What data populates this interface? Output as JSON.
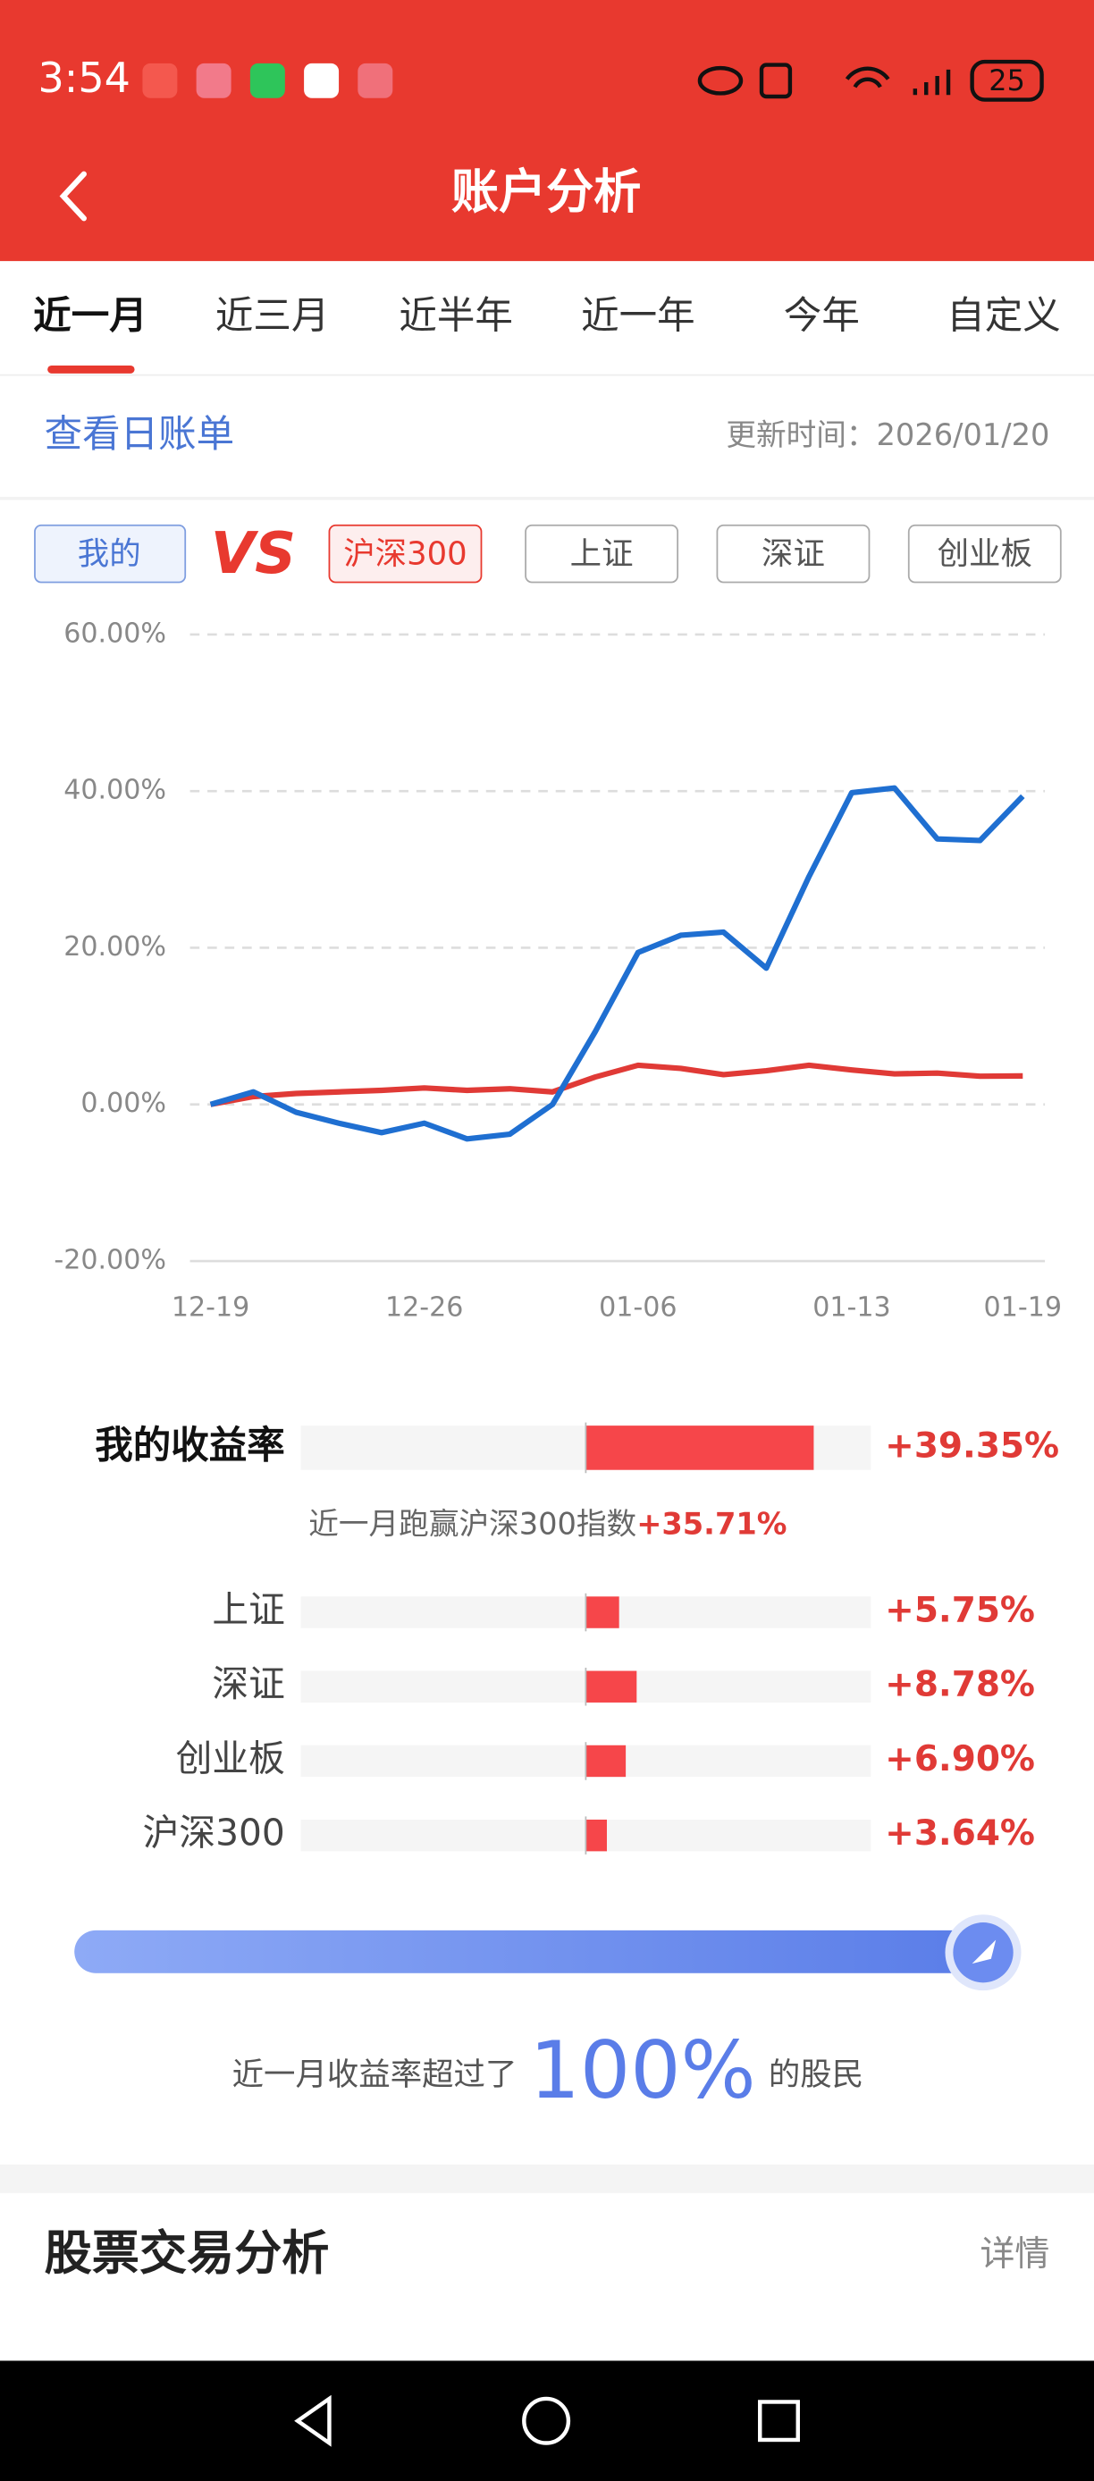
{
  "status_bar": {
    "time": "3:54",
    "battery": "25"
  },
  "header": {
    "title": "账户分析"
  },
  "tabs": [
    "近一月",
    "近三月",
    "近半年",
    "近一年",
    "今年",
    "自定义"
  ],
  "bill_link": "查看日账单",
  "update_time": "更新时间：2026/01/20",
  "compare": {
    "mine": "我的",
    "vs": "VS",
    "buttons": [
      "沪深300",
      "上证",
      "深证",
      "创业板"
    ]
  },
  "chart_data": [
    {
      "type": "line",
      "categories": [
        "12-19",
        null,
        null,
        null,
        null,
        "12-26",
        null,
        null,
        null,
        null,
        "01-06",
        null,
        null,
        null,
        null,
        "01-13",
        null,
        null,
        null,
        "01-19"
      ],
      "series": [
        {
          "name": "我的",
          "color": "#1f6fd1",
          "values": [
            0,
            1.6,
            -1,
            -2.4,
            -3.6,
            -2.4,
            -4.4,
            -3.8,
            0,
            9.3,
            19.4,
            21.6,
            22,
            17.4,
            29.1,
            39.8,
            40.4,
            33.9,
            33.7,
            39.35
          ]
        },
        {
          "name": "沪深300",
          "color": "#e03a36",
          "values": [
            0,
            1.0,
            1.4,
            1.6,
            1.8,
            2.1,
            1.8,
            2.0,
            1.6,
            3.5,
            5.0,
            4.6,
            3.8,
            4.3,
            5.0,
            4.4,
            3.9,
            4.0,
            3.6,
            3.64
          ]
        }
      ],
      "ylim": [
        -20,
        60
      ],
      "yticks": [
        {
          "value": -20,
          "label": "-20.00%"
        },
        {
          "value": 0,
          "label": "0.00%"
        },
        {
          "value": 20,
          "label": "20.00%"
        },
        {
          "value": 40,
          "label": "40.00%"
        },
        {
          "value": 60,
          "label": "60.00%"
        }
      ],
      "grid": true
    },
    {
      "type": "bar",
      "orientation": "horizontal",
      "categories": [
        "我的收益率",
        "上证",
        "深证",
        "创业板",
        "沪深300"
      ],
      "values": [
        39.35,
        5.75,
        8.78,
        6.9,
        3.64
      ],
      "value_labels": [
        "+39.35%",
        "+5.75%",
        "+8.78%",
        "+6.90%",
        "+3.64%"
      ],
      "color": "#f6464a",
      "xlim": [
        -49.2,
        49.2
      ]
    }
  ],
  "outperform": {
    "text": "近一月跑赢沪深300指数",
    "value": "+35.71%"
  },
  "rank": {
    "prefix": "近一月收益率超过了",
    "value": 100,
    "label": "100%",
    "suffix": "的股民"
  },
  "section": {
    "title": "股票交易分析",
    "link": "详情"
  }
}
